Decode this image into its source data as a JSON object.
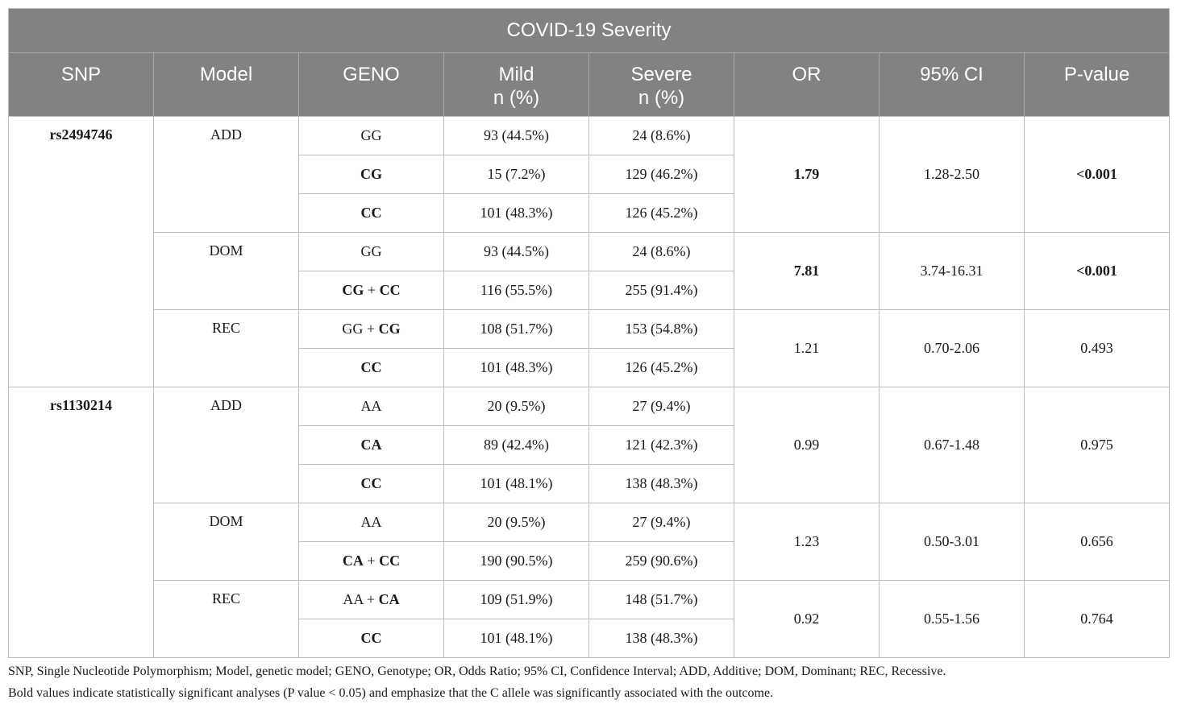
{
  "table": {
    "title": "COVID-19 Severity",
    "headers": {
      "snp": "SNP",
      "model": "Model",
      "geno": "GENO",
      "mild_1": "Mild",
      "mild_2": "n (%)",
      "severe_1": "Severe",
      "severe_2": "n (%)",
      "or": "OR",
      "ci": "95% CI",
      "p": "P-value"
    },
    "snp1": {
      "name": "rs2494746",
      "add": {
        "model": "ADD",
        "or": "1.79",
        "ci": "1.28-2.50",
        "p": "<0.001",
        "rows": [
          {
            "g1": "GG",
            "mild": "93 (44.5%)",
            "severe": "24 (8.6%)"
          },
          {
            "g1": "CG",
            "mild": "15 (7.2%)",
            "severe": "129 (46.2%)"
          },
          {
            "g1": "CC",
            "mild": "101 (48.3%)",
            "severe": "126 (45.2%)"
          }
        ]
      },
      "dom": {
        "model": "DOM",
        "or": "7.81",
        "ci": "3.74-16.31",
        "p": "<0.001",
        "rows": [
          {
            "g1": "GG",
            "mild": "93 (44.5%)",
            "severe": "24 (8.6%)"
          },
          {
            "g1": "CG",
            "plus": " + ",
            "g2": "CC",
            "mild": "116 (55.5%)",
            "severe": "255 (91.4%)"
          }
        ]
      },
      "rec": {
        "model": "REC",
        "or": "1.21",
        "ci": "0.70-2.06",
        "p": "0.493",
        "rows": [
          {
            "g1": "GG + ",
            "g2": "CG",
            "mild": "108 (51.7%)",
            "severe": "153 (54.8%)"
          },
          {
            "g1": "CC",
            "mild": "101 (48.3%)",
            "severe": "126 (45.2%)"
          }
        ]
      }
    },
    "snp2": {
      "name": "rs1130214",
      "add": {
        "model": "ADD",
        "or": "0.99",
        "ci": "0.67-1.48",
        "p": "0.975",
        "rows": [
          {
            "g1": "AA",
            "mild": "20 (9.5%)",
            "severe": "27 (9.4%)"
          },
          {
            "g1": "CA",
            "mild": "89 (42.4%)",
            "severe": "121 (42.3%)"
          },
          {
            "g1": "CC",
            "mild": "101 (48.1%)",
            "severe": "138 (48.3%)"
          }
        ]
      },
      "dom": {
        "model": "DOM",
        "or": "1.23",
        "ci": "0.50-3.01",
        "p": "0.656",
        "rows": [
          {
            "g1": "AA",
            "mild": "20 (9.5%)",
            "severe": "27 (9.4%)"
          },
          {
            "g1": "CA",
            "plus": " + ",
            "g2": "CC",
            "mild": "190 (90.5%)",
            "severe": "259 (90.6%)"
          }
        ]
      },
      "rec": {
        "model": "REC",
        "or": "0.92",
        "ci": "0.55-1.56",
        "p": "0.764",
        "rows": [
          {
            "g1": "AA + ",
            "g2": "CA",
            "mild": "109 (51.9%)",
            "severe": "148 (51.7%)"
          },
          {
            "g1": "CC",
            "mild": "101 (48.1%)",
            "severe": "138 (48.3%)"
          }
        ]
      }
    }
  },
  "footnote": {
    "line1": "SNP, Single Nucleotide Polymorphism; Model, genetic model; GENO, Genotype; OR, Odds Ratio; 95% CI, Confidence Interval; ADD, Additive; DOM, Dominant; REC, Recessive.",
    "line2": "Bold values indicate statistically significant analyses (P value < 0.05) and emphasize that the C allele was significantly associated with the outcome."
  }
}
